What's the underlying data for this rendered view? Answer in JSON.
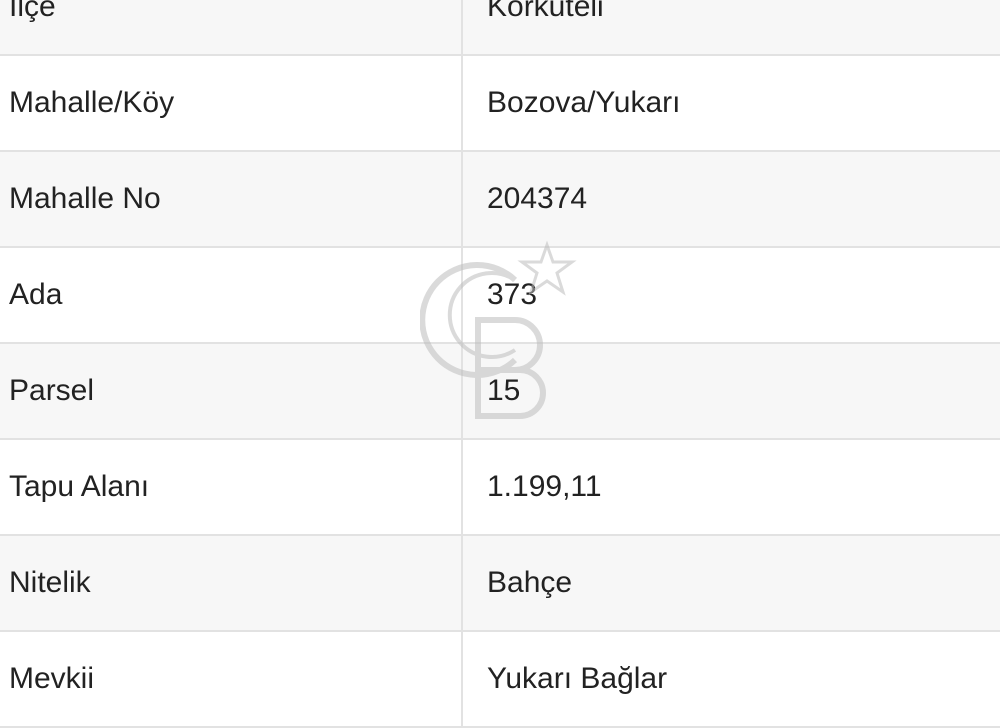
{
  "rows": [
    {
      "label": "İlçe",
      "value": "Korkuteli"
    },
    {
      "label": "Mahalle/Köy",
      "value": "Bozova/Yukarı"
    },
    {
      "label": "Mahalle No",
      "value": "204374"
    },
    {
      "label": "Ada",
      "value": "373"
    },
    {
      "label": "Parsel",
      "value": "15"
    },
    {
      "label": "Tapu Alanı",
      "value": "1.199,11"
    },
    {
      "label": "Nitelik",
      "value": "Bahçe"
    },
    {
      "label": "Mevkii",
      "value": "Yukarı Bağlar"
    }
  ],
  "watermark": {
    "logo": "CB",
    "icon": "star-icon"
  }
}
